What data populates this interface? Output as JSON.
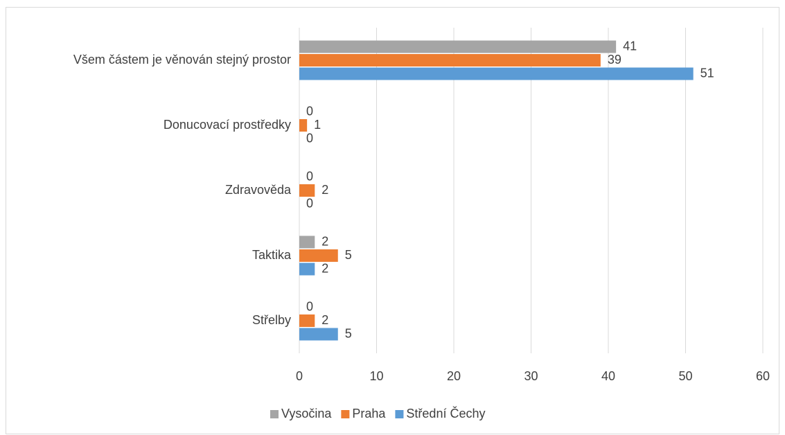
{
  "chart_data": {
    "type": "barh",
    "categories": [
      "Všem částem je věnován stejný prostor",
      "Donucovací prostředky",
      "Zdravověda",
      "Taktika",
      "Střelby"
    ],
    "series": [
      {
        "name": "Vysočina",
        "color": "#a5a5a5",
        "values": [
          41,
          0,
          0,
          2,
          0
        ]
      },
      {
        "name": "Praha",
        "color": "#ed7d31",
        "values": [
          39,
          1,
          2,
          5,
          2
        ]
      },
      {
        "name": "Střední Čechy",
        "color": "#5b9bd5",
        "values": [
          51,
          0,
          0,
          2,
          5
        ]
      }
    ],
    "xlim": [
      0,
      60
    ],
    "xticks": [
      0,
      10,
      20,
      30,
      40,
      50,
      60
    ],
    "grid": true,
    "legend": "bottom"
  }
}
